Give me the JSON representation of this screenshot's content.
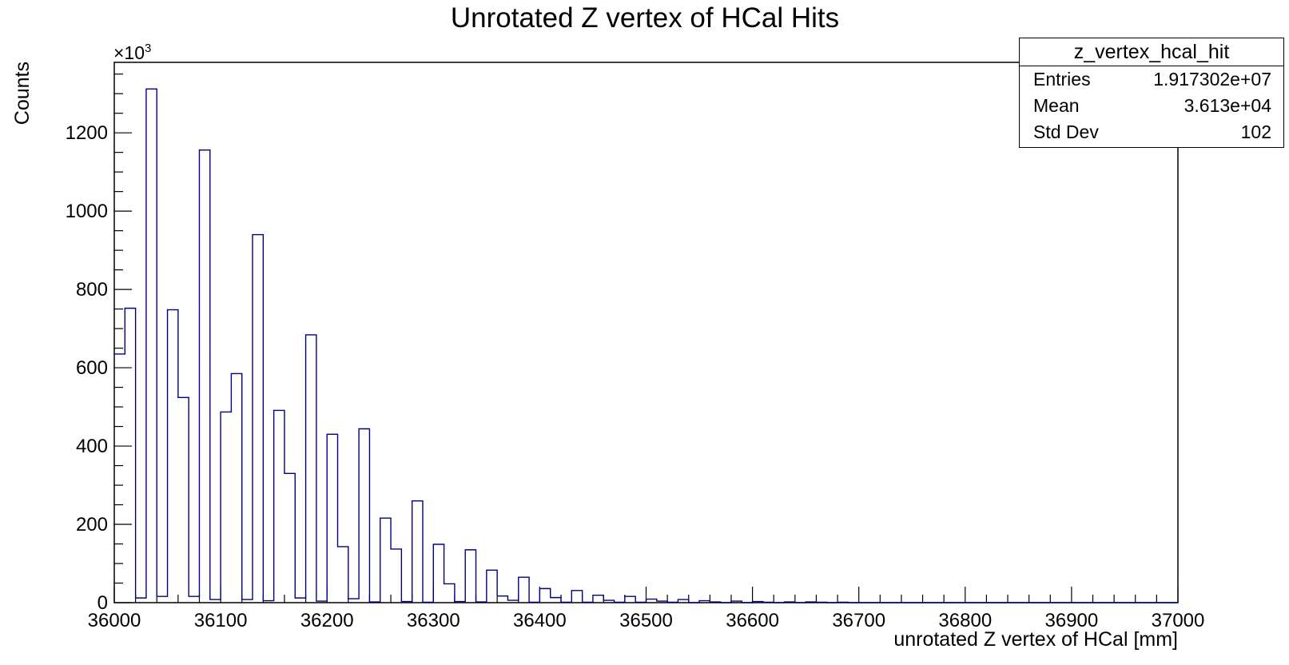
{
  "chart_data": {
    "type": "bar",
    "style": "step-histogram",
    "title": "Unrotated Z vertex of HCal Hits",
    "xlabel": "unrotated Z vertex of HCal [mm]",
    "ylabel": "Counts",
    "y_multiplier_label": "×10",
    "y_multiplier_exponent": "3",
    "xlim": [
      36000,
      37000
    ],
    "ylim": [
      0,
      1380
    ],
    "x_ticks": [
      36000,
      36100,
      36200,
      36300,
      36400,
      36500,
      36600,
      36700,
      36800,
      36900,
      37000
    ],
    "x_tick_labels": [
      "36000",
      "36100",
      "36200",
      "36300",
      "36400",
      "36500",
      "36600",
      "36700",
      "36800",
      "36900",
      "37000"
    ],
    "y_ticks": [
      0,
      200,
      400,
      600,
      800,
      1000,
      1200
    ],
    "y_tick_labels": [
      "0",
      "200",
      "400",
      "600",
      "800",
      "1000",
      "1200"
    ],
    "line_color": "#00007f",
    "grid": false,
    "bin_width": 10,
    "bin_edges_start": 36000,
    "values": [
      635,
      752,
      12,
      1312,
      16,
      748,
      524,
      16,
      1156,
      8,
      487,
      585,
      8,
      940,
      5,
      491,
      330,
      12,
      684,
      4,
      430,
      143,
      10,
      444,
      2,
      216,
      137,
      3,
      260,
      1,
      149,
      48,
      3,
      135,
      2,
      83,
      17,
      6,
      65,
      1,
      36,
      13,
      1,
      31,
      1,
      19,
      6,
      1,
      16,
      1,
      9,
      4,
      1,
      8,
      0,
      5,
      2,
      0,
      4,
      0,
      3,
      1,
      0,
      2,
      0,
      2,
      1,
      0,
      1,
      0,
      0,
      0,
      0,
      0,
      0,
      0,
      0,
      0,
      0,
      0,
      0,
      0,
      0,
      0,
      0,
      0,
      0,
      0,
      0,
      0,
      0,
      0,
      0,
      0,
      0,
      0,
      0,
      0,
      0,
      0
    ],
    "stats": {
      "name": "z_vertex_hcal_hit",
      "rows": [
        {
          "label": "Entries",
          "value": "1.917302e+07"
        },
        {
          "label": "Mean",
          "value": "3.613e+04"
        },
        {
          "label": "Std Dev",
          "value": "102"
        }
      ]
    }
  }
}
